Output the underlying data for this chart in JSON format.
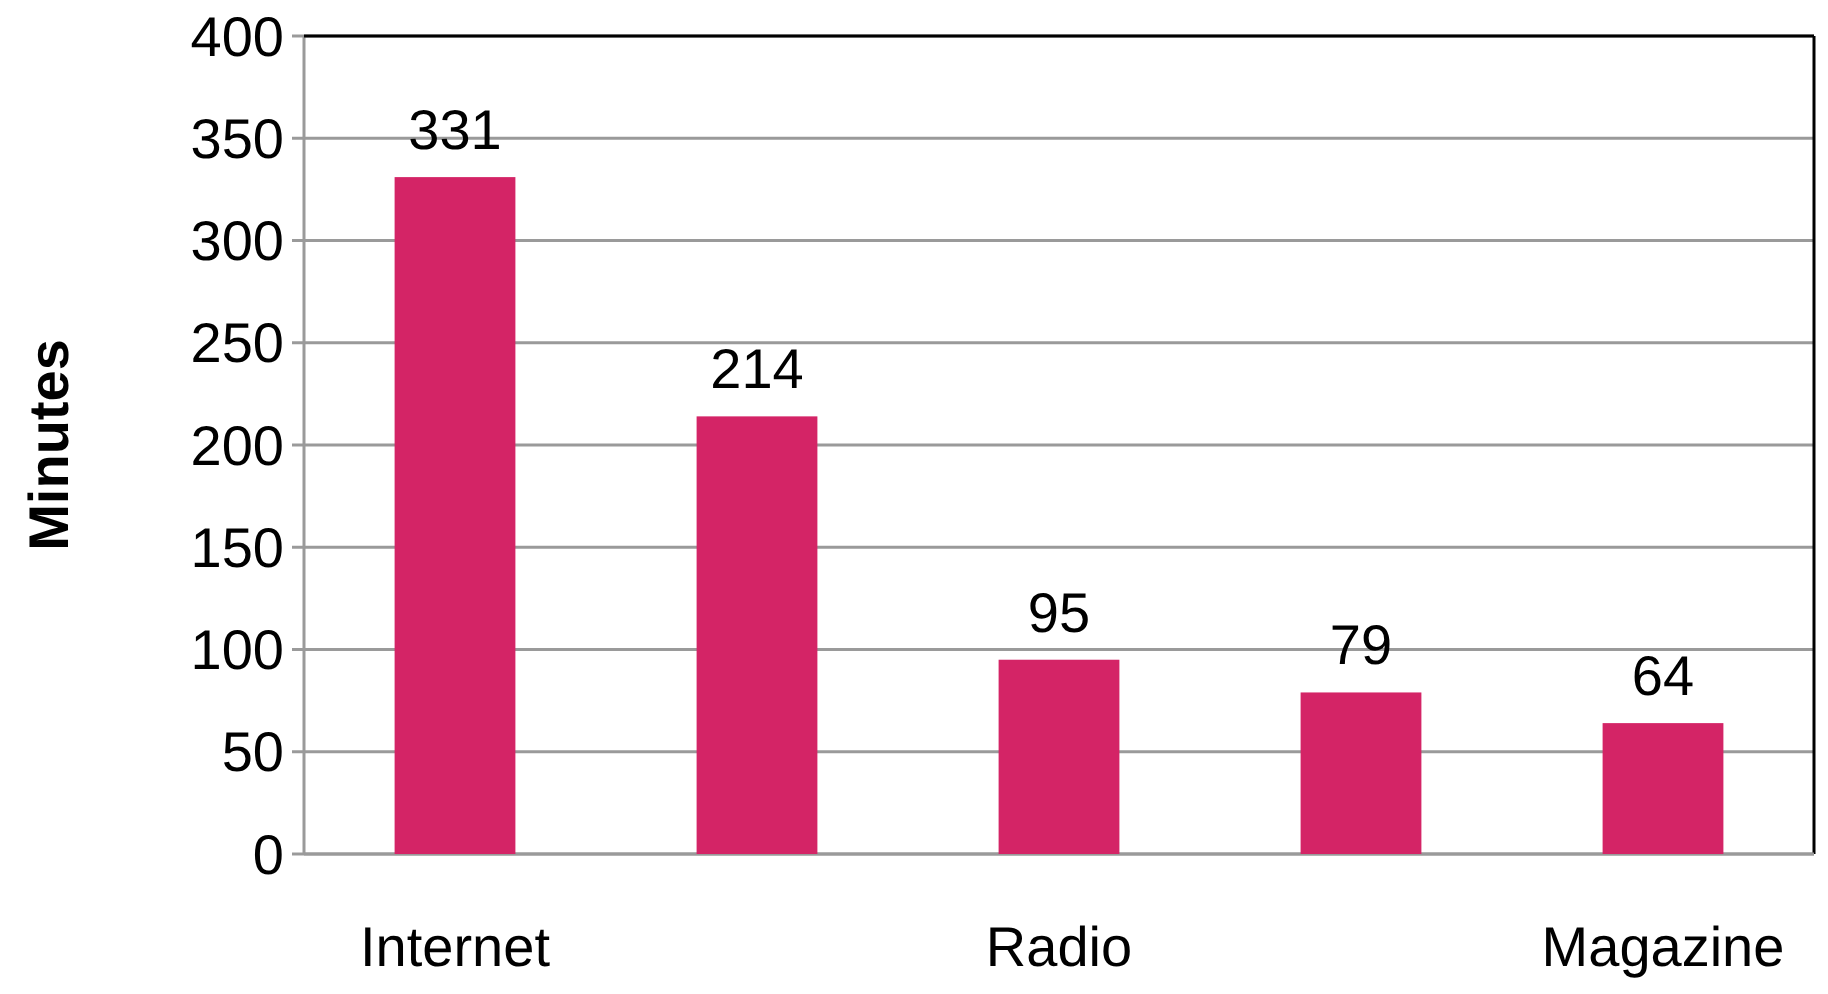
{
  "chart_data": {
    "type": "bar",
    "ylabel": "Minutes",
    "categories": [
      "Internet",
      null,
      "Radio",
      null,
      "Magazine"
    ],
    "values": [
      331,
      214,
      95,
      79,
      64
    ],
    "color": "#d42466",
    "ylim": [
      0,
      400
    ],
    "yticks": [
      0,
      50,
      100,
      150,
      200,
      250,
      300,
      350,
      400
    ],
    "grid": "y",
    "data_labels": true
  }
}
